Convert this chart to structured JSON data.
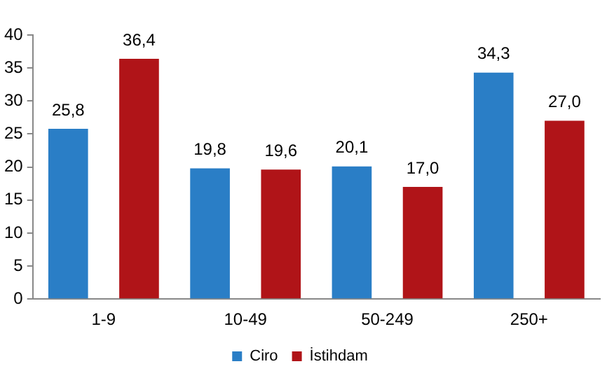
{
  "chart_data": {
    "type": "bar",
    "categories": [
      "1-9",
      "10-49",
      "50-249",
      "250+"
    ],
    "series": [
      {
        "name": "Ciro",
        "color": "#2a7ec6",
        "values": [
          25.8,
          19.8,
          20.1,
          34.3
        ],
        "value_labels": [
          "25,8",
          "19,8",
          "20,1",
          "34,3"
        ]
      },
      {
        "name": "İstihdam",
        "color": "#b01418",
        "values": [
          36.4,
          19.6,
          17.0,
          27.0
        ],
        "value_labels": [
          "36,4",
          "19,6",
          "17,0",
          "27,0"
        ]
      }
    ],
    "ylim": [
      0,
      40
    ],
    "yticks": [
      0,
      5,
      10,
      15,
      20,
      25,
      30,
      35,
      40
    ],
    "grid": false,
    "legend": "bottom"
  }
}
